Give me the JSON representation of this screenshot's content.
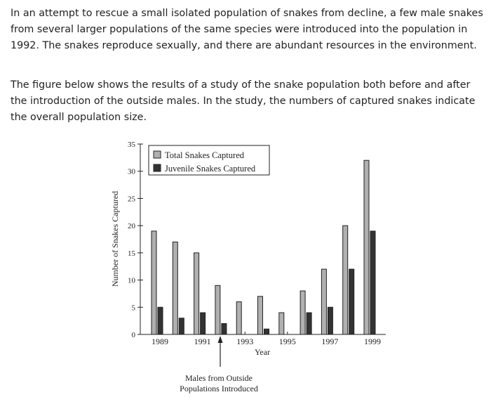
{
  "question": {
    "paragraph1": "In an attempt to rescue a small isolated population of snakes from decline, a few male snakes from several larger populations of the same species were introduced into the population in 1992. The snakes reproduce sexually, and there are abundant resources in the environment.",
    "paragraph2": "The figure below shows the results of a study of the snake population both before and after the introduction of the outside males. In the study, the numbers of captured snakes indicate the overall population size."
  },
  "chart_data": {
    "type": "bar",
    "title": "",
    "xlabel": "Year",
    "ylabel": "Number of Snakes Captured",
    "ylim": [
      0,
      35
    ],
    "yticks": [
      0,
      5,
      10,
      15,
      20,
      25,
      30,
      35
    ],
    "categories": [
      "1989",
      "1990",
      "1991",
      "1992",
      "1993",
      "1994",
      "1995",
      "1996",
      "1997",
      "1998",
      "1999"
    ],
    "x_tick_labels": [
      "1989",
      "1991",
      "1993",
      "1995",
      "1997",
      "1999"
    ],
    "series": [
      {
        "name": "Total Snakes Captured",
        "color": "#b0b0b0",
        "values": [
          19,
          17,
          15,
          9,
          6,
          7,
          4,
          8,
          12,
          20,
          32
        ]
      },
      {
        "name": "Juvenile Snakes Captured",
        "color": "#333333",
        "values": [
          5,
          3,
          4,
          2,
          0,
          1,
          0,
          4,
          5,
          12,
          19
        ]
      }
    ],
    "legend_position": "top-left",
    "annotation": {
      "year": "1992",
      "line1": "Males from Outside",
      "line2": "Populations Introduced"
    }
  }
}
